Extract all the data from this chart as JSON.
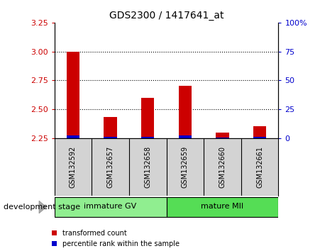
{
  "title": "GDS2300 / 1417641_at",
  "samples": [
    "GSM132592",
    "GSM132657",
    "GSM132658",
    "GSM132659",
    "GSM132660",
    "GSM132661"
  ],
  "red_values": [
    3.0,
    2.43,
    2.6,
    2.7,
    2.295,
    2.35
  ],
  "blue_values": [
    2.275,
    2.262,
    2.262,
    2.272,
    2.252,
    2.262
  ],
  "baseline": 2.25,
  "ylim_left": [
    2.25,
    3.25
  ],
  "ylim_right": [
    0,
    100
  ],
  "yticks_left": [
    2.25,
    2.5,
    2.75,
    3.0,
    3.25
  ],
  "yticks_right": [
    0,
    25,
    50,
    75,
    100
  ],
  "ytick_labels_right": [
    "0",
    "25",
    "50",
    "75",
    "100%"
  ],
  "dotted_lines": [
    3.0,
    2.75,
    2.5
  ],
  "groups": [
    {
      "label": "immature GV",
      "indices": [
        0,
        1,
        2
      ],
      "color": "#90EE90"
    },
    {
      "label": "mature MII",
      "indices": [
        3,
        4,
        5
      ],
      "color": "#55DD55"
    }
  ],
  "group_label": "development stage",
  "legend": [
    {
      "label": "transformed count",
      "color": "#CC0000"
    },
    {
      "label": "percentile rank within the sample",
      "color": "#0000CC"
    }
  ],
  "red_color": "#CC0000",
  "blue_color": "#0000CC",
  "bg_plot": "#FFFFFF",
  "bg_xtick": "#D3D3D3",
  "left_axis_color": "#CC0000",
  "right_axis_color": "#0000CC",
  "bar_width": 0.35
}
